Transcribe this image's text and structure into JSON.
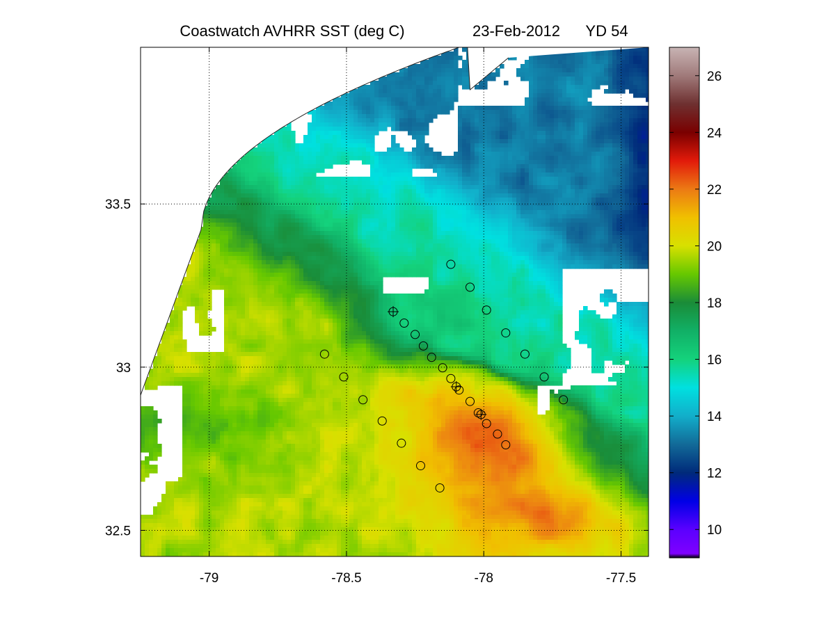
{
  "title": {
    "left": "Coastwatch   AVHRR   SST  (deg C)",
    "date": "23-Feb-2012",
    "yearday": "YD 54"
  },
  "chart_data": {
    "type": "heatmap",
    "variable": "SST",
    "units": "deg C",
    "xlim": [
      -79.25,
      -77.4
    ],
    "ylim": [
      32.42,
      33.98
    ],
    "xticks": [
      -79,
      -78.5,
      -78,
      -77.5
    ],
    "xtick_labels": [
      "-79",
      "-78.5",
      "-78",
      "-77.5"
    ],
    "yticks": [
      32.5,
      33,
      33.5
    ],
    "ytick_labels": [
      "32.5",
      "33",
      "33.5"
    ],
    "grid": "dotted",
    "colorbar": {
      "range": [
        9,
        27
      ],
      "ticks": [
        10,
        12,
        14,
        16,
        18,
        20,
        22,
        24,
        26
      ],
      "tick_labels": [
        "10",
        "12",
        "14",
        "16",
        "18",
        "20",
        "22",
        "24",
        "26"
      ],
      "colormap": [
        {
          "v": 9.0,
          "c": "#000000"
        },
        {
          "v": 9.15,
          "c": "#7f00ff"
        },
        {
          "v": 10.0,
          "c": "#5a00ff"
        },
        {
          "v": 11.0,
          "c": "#0000e6"
        },
        {
          "v": 12.0,
          "c": "#002a7a"
        },
        {
          "v": 13.0,
          "c": "#126a98"
        },
        {
          "v": 14.0,
          "c": "#12aeca"
        },
        {
          "v": 15.0,
          "c": "#00e0e0"
        },
        {
          "v": 16.0,
          "c": "#14d27c"
        },
        {
          "v": 17.0,
          "c": "#11b066"
        },
        {
          "v": 18.0,
          "c": "#1a8c38"
        },
        {
          "v": 19.0,
          "c": "#66c800"
        },
        {
          "v": 20.0,
          "c": "#d8e000"
        },
        {
          "v": 21.0,
          "c": "#f0c000"
        },
        {
          "v": 22.0,
          "c": "#ec7a14"
        },
        {
          "v": 23.0,
          "c": "#e21a0a"
        },
        {
          "v": 24.0,
          "c": "#7a0000"
        },
        {
          "v": 25.0,
          "c": "#6e3030"
        },
        {
          "v": 26.0,
          "c": "#a07a7a"
        },
        {
          "v": 27.0,
          "c": "#c8b4b4"
        }
      ]
    },
    "sst_field_approx": {
      "description": "approximate SST field read from colors",
      "nearshore_north": 13,
      "shelf_mid": 15,
      "gulf_stream_front": 18,
      "southwest_shelf": 19.5,
      "gulf_stream_core": 22,
      "far_east": 20
    },
    "stations_circle": [
      {
        "lon": -78.12,
        "lat": 33.315
      },
      {
        "lon": -78.05,
        "lat": 33.245
      },
      {
        "lon": -77.99,
        "lat": 33.175
      },
      {
        "lon": -77.92,
        "lat": 33.105
      },
      {
        "lon": -77.85,
        "lat": 33.04
      },
      {
        "lon": -77.78,
        "lat": 32.97
      },
      {
        "lon": -77.71,
        "lat": 32.9
      },
      {
        "lon": -78.29,
        "lat": 33.135
      },
      {
        "lon": -78.25,
        "lat": 33.1
      },
      {
        "lon": -78.22,
        "lat": 33.065
      },
      {
        "lon": -78.19,
        "lat": 33.03
      },
      {
        "lon": -78.15,
        "lat": 32.998
      },
      {
        "lon": -78.12,
        "lat": 32.965
      },
      {
        "lon": -78.09,
        "lat": 32.93
      },
      {
        "lon": -78.05,
        "lat": 32.895
      },
      {
        "lon": -78.02,
        "lat": 32.86
      },
      {
        "lon": -77.99,
        "lat": 32.827
      },
      {
        "lon": -77.95,
        "lat": 32.795
      },
      {
        "lon": -77.92,
        "lat": 32.762
      },
      {
        "lon": -78.58,
        "lat": 33.04
      },
      {
        "lon": -78.51,
        "lat": 32.97
      },
      {
        "lon": -78.44,
        "lat": 32.9
      },
      {
        "lon": -78.37,
        "lat": 32.835
      },
      {
        "lon": -78.3,
        "lat": 32.767
      },
      {
        "lon": -78.23,
        "lat": 32.698
      },
      {
        "lon": -78.16,
        "lat": 32.63
      }
    ],
    "stations_star": [
      {
        "lon": -78.33,
        "lat": 33.17
      },
      {
        "lon": -78.1,
        "lat": 32.94
      },
      {
        "lon": -78.01,
        "lat": 32.855
      }
    ]
  }
}
